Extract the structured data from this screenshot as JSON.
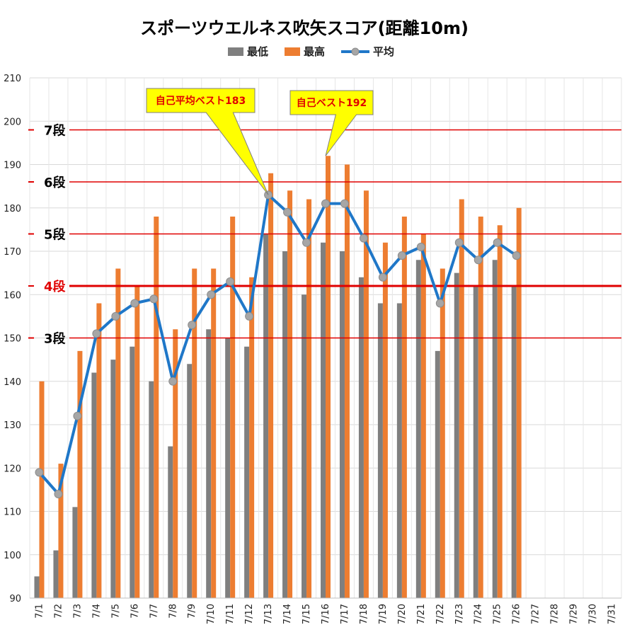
{
  "chart_data": {
    "type": "bar",
    "title": "スポーツウエルネス吹矢スコア(距離10m)",
    "ylim": [
      90,
      210
    ],
    "yticks": [
      90,
      100,
      110,
      120,
      130,
      140,
      150,
      160,
      170,
      180,
      190,
      200,
      210
    ],
    "grid": true,
    "legend_position": "top",
    "categories": [
      "7/1",
      "7/2",
      "7/3",
      "7/4",
      "7/5",
      "7/6",
      "7/7",
      "7/8",
      "7/9",
      "7/10",
      "7/11",
      "7/12",
      "7/13",
      "7/14",
      "7/15",
      "7/16",
      "7/17",
      "7/18",
      "7/19",
      "7/20",
      "7/21",
      "7/22",
      "7/23",
      "7/24",
      "7/25",
      "7/26",
      "7/27",
      "7/28",
      "7/29",
      "7/30",
      "7/31"
    ],
    "series": [
      {
        "name": "最低",
        "type": "bar",
        "color": "#7f7f7f",
        "values": [
          95,
          101,
          111,
          142,
          145,
          148,
          140,
          125,
          144,
          152,
          150,
          148,
          174,
          170,
          160,
          172,
          170,
          164,
          158,
          158,
          168,
          147,
          165,
          162,
          168,
          162,
          null,
          null,
          null,
          null,
          null
        ]
      },
      {
        "name": "最高",
        "type": "bar",
        "color": "#ed7d31",
        "values": [
          140,
          121,
          147,
          158,
          166,
          162,
          178,
          152,
          166,
          166,
          178,
          164,
          188,
          184,
          182,
          192,
          190,
          184,
          172,
          178,
          174,
          166,
          182,
          178,
          176,
          180,
          null,
          null,
          null,
          null,
          null
        ]
      },
      {
        "name": "平均",
        "type": "line",
        "color": "#1f77c8",
        "marker_color": "#a6a6a6",
        "values": [
          119,
          114,
          132,
          151,
          155,
          158,
          159,
          140,
          153,
          160,
          163,
          155,
          183,
          179,
          172,
          181,
          181,
          173,
          164,
          169,
          171,
          158,
          172,
          168,
          172,
          169,
          null,
          null,
          null,
          null,
          null
        ]
      }
    ],
    "reference_lines": [
      {
        "label": "7段",
        "value": 198,
        "label_color": "#000000"
      },
      {
        "label": "6段",
        "value": 186,
        "label_color": "#000000"
      },
      {
        "label": "5段",
        "value": 174,
        "label_color": "#000000"
      },
      {
        "label": "4段",
        "value": 162,
        "label_color": "#e00000"
      },
      {
        "label": "3段",
        "value": 150,
        "label_color": "#000000"
      }
    ],
    "annotations": [
      {
        "text": "自己平均ベスト183",
        "category": "7/13",
        "value": 183
      },
      {
        "text": "自己ベスト192",
        "category": "7/16",
        "value": 192
      }
    ]
  }
}
